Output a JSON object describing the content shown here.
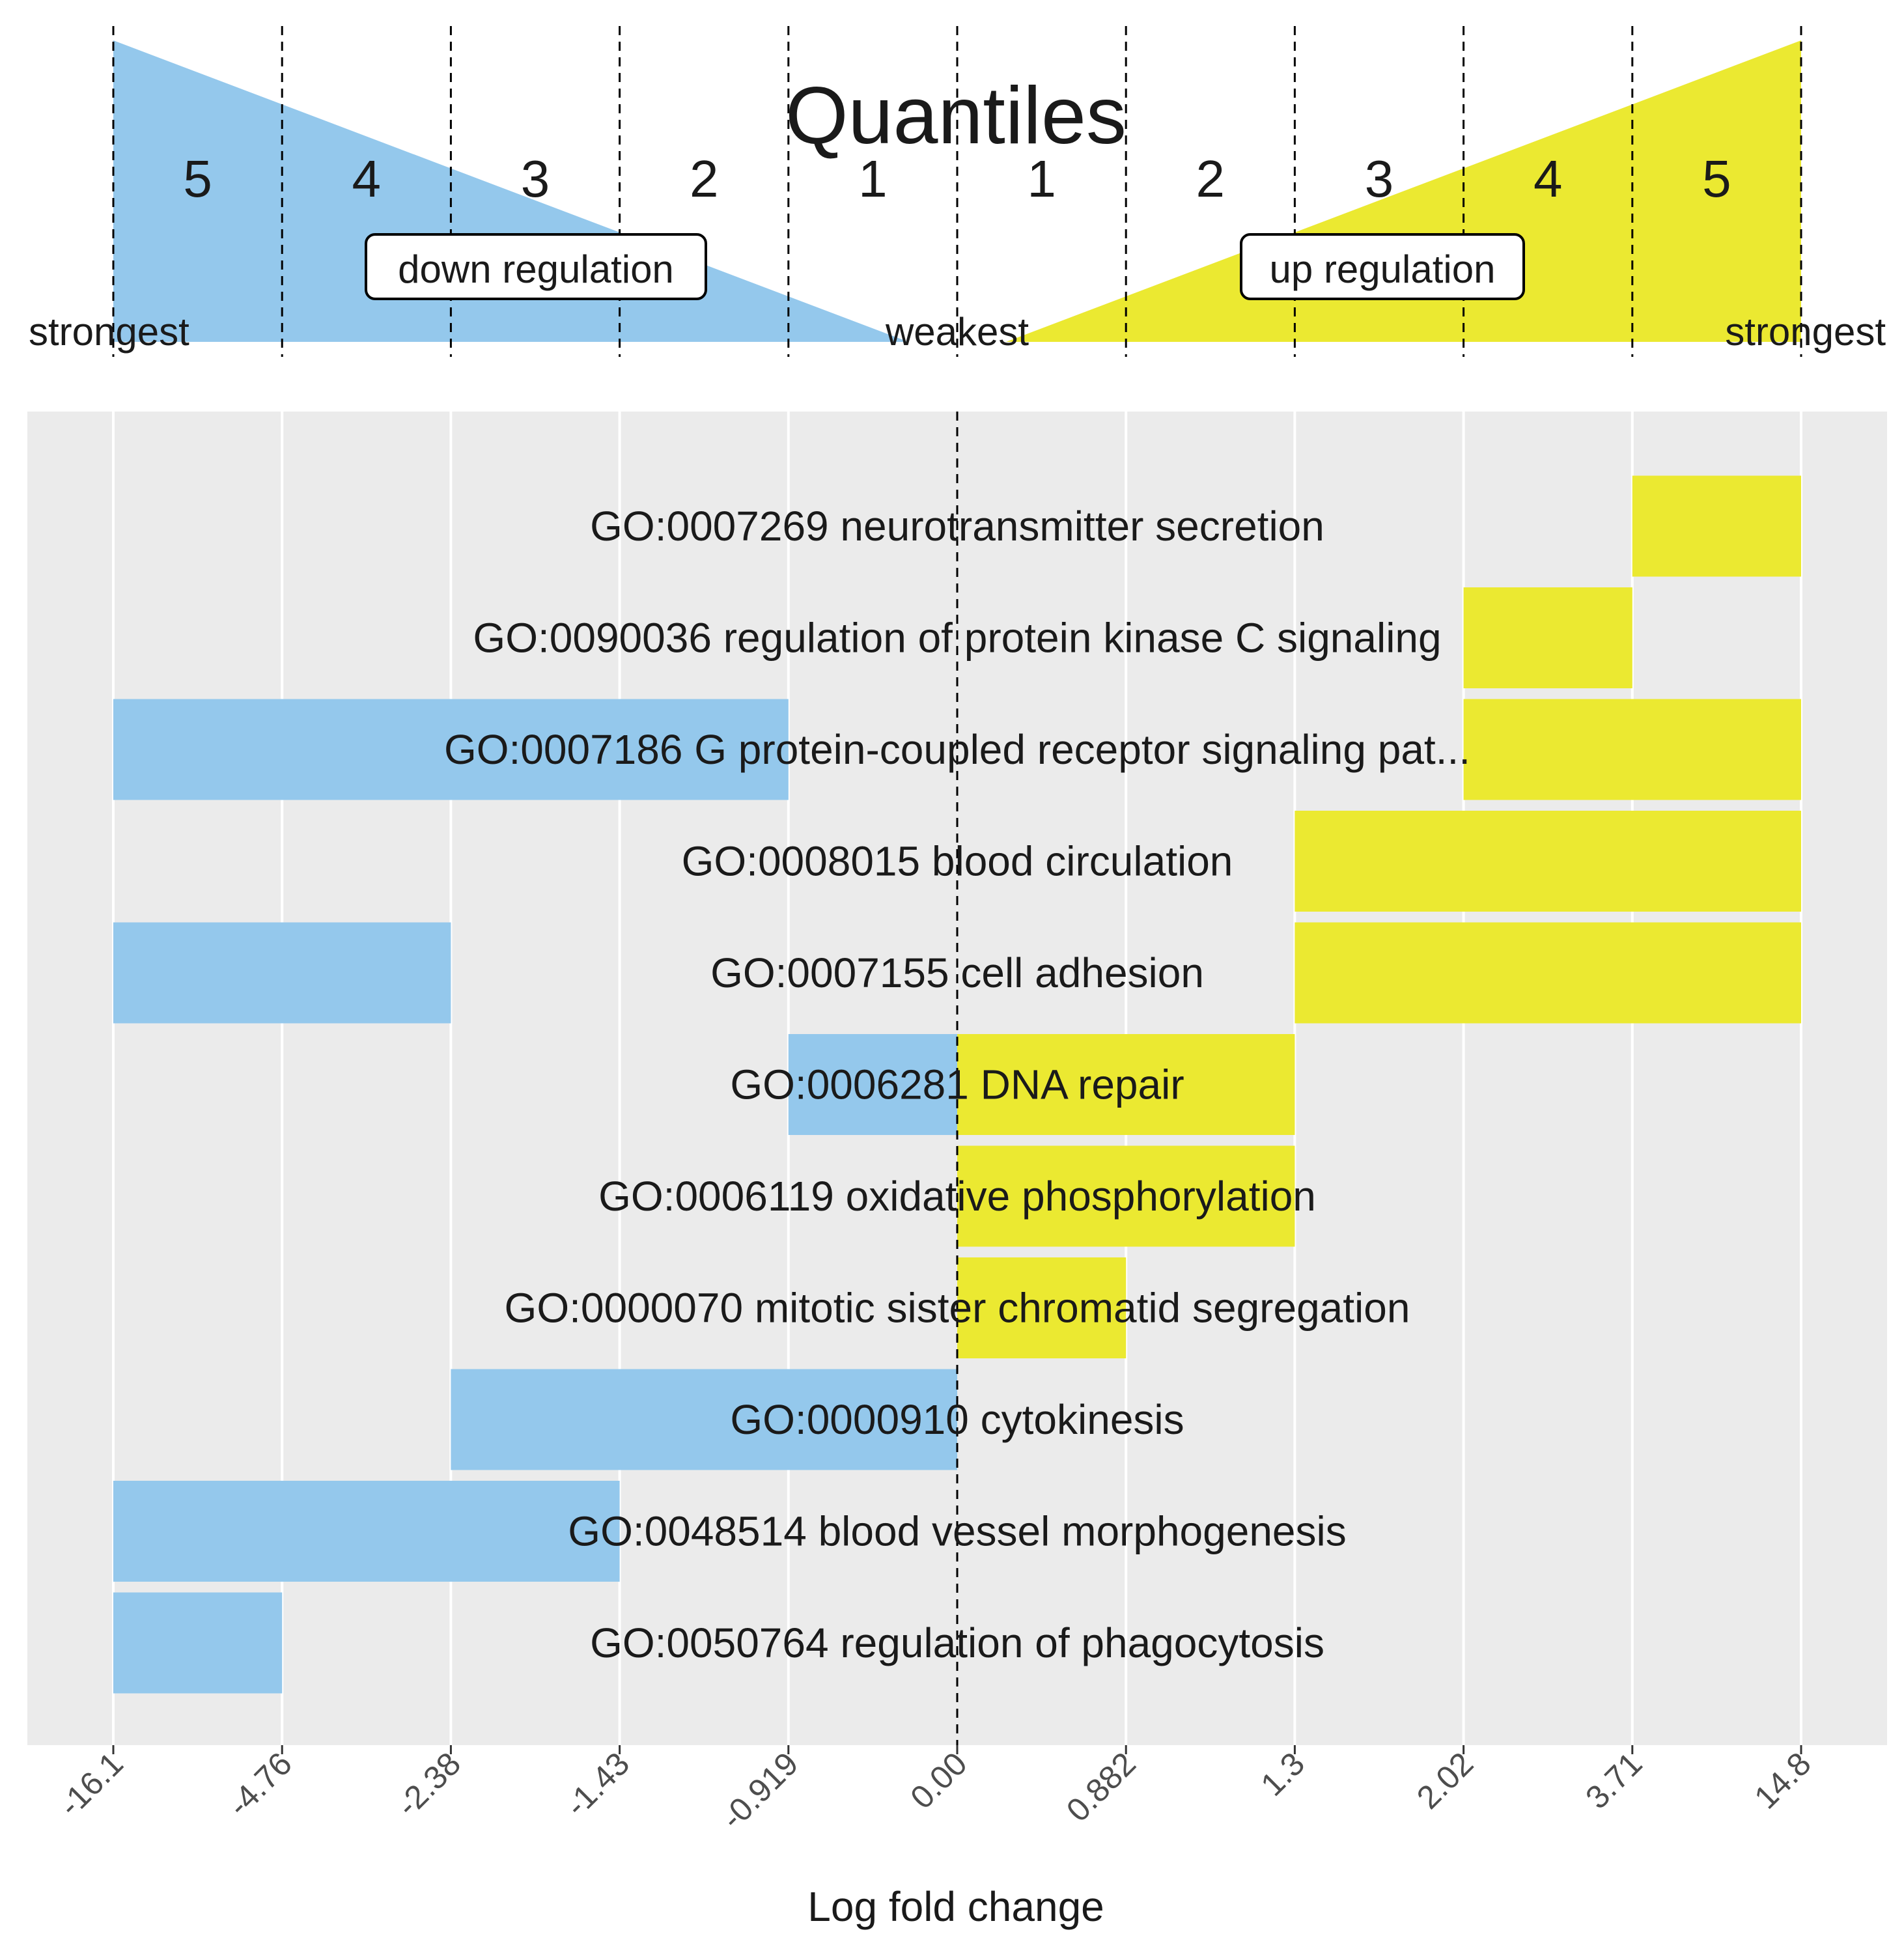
{
  "chart_data": {
    "type": "bar",
    "title": "Quantiles",
    "xlabel": "Log fold change",
    "ylabel": "",
    "x_ticks": [
      "-16.1",
      "-4.76",
      "-2.38",
      "-1.43",
      "-0.919",
      "0.00",
      "0.882",
      "1.3",
      "2.02",
      "3.71",
      "14.8"
    ],
    "quantile_numbers": [
      "5",
      "4",
      "3",
      "2",
      "1",
      "1",
      "2",
      "3",
      "4",
      "5"
    ],
    "legend": {
      "down_label": "down regulation",
      "up_label": "up regulation",
      "left_end": "strongest",
      "center": "weakest",
      "right_end": "strongest"
    },
    "colors": {
      "down": "#94c8ec",
      "up": "#ebe931",
      "panel": "#ebebeb",
      "grid": "#ffffff"
    },
    "note": "Bar spans are given in quantile-boundary index units: 0 = -16.1 ... 5 = 0.00 ... 10 = 14.8",
    "categories": [
      "GO:0007269 neurotransmitter secretion",
      "GO:0090036 regulation of protein kinase C signaling",
      "GO:0007186 G protein-coupled receptor signaling pat...",
      "GO:0008015 blood circulation",
      "GO:0007155 cell adhesion",
      "GO:0006281 DNA repair",
      "GO:0006119 oxidative phosphorylation",
      "GO:0000070 mitotic sister chromatid segregation",
      "GO:0000910 cytokinesis",
      "GO:0048514 blood vessel morphogenesis",
      "GO:0050764 regulation of phagocytosis"
    ],
    "series": [
      {
        "name": "down regulation",
        "color": "#94c8ec",
        "spans": [
          null,
          null,
          [
            0,
            4
          ],
          null,
          [
            0,
            2
          ],
          [
            4,
            5
          ],
          null,
          null,
          [
            2,
            5
          ],
          [
            0,
            3
          ],
          [
            0,
            1
          ]
        ]
      },
      {
        "name": "up regulation",
        "color": "#ebe931",
        "spans": [
          [
            9,
            10
          ],
          [
            8,
            9
          ],
          [
            8,
            10
          ],
          [
            7,
            10
          ],
          [
            7,
            10
          ],
          [
            5,
            7
          ],
          [
            5,
            7
          ],
          [
            5,
            6
          ],
          null,
          null,
          null
        ]
      }
    ]
  }
}
